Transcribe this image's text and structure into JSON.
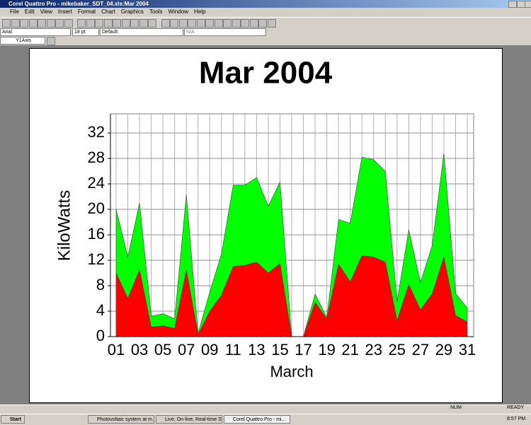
{
  "window": {
    "title": "Corel Quattro Pro - mikebaker_SDT_04.xls:Mar 2004",
    "menu": [
      "File",
      "Edit",
      "View",
      "Insert",
      "Format",
      "Chart",
      "Graphics",
      "Tools",
      "Window",
      "Help"
    ],
    "font": "Arial",
    "size": "18 pt",
    "style": "Default",
    "style2": "N/A",
    "object": "Y1Axis",
    "status": [
      "NUM",
      "READY"
    ],
    "taskbar": {
      "start": "Start",
      "tasks": [
        "Photovoltaic system at m...",
        "Live, On-line, Real-time S...",
        "Corel Quattro Pro - mi..."
      ],
      "clock": "8:57 PM"
    }
  },
  "chart_data": {
    "type": "stacked_area",
    "title": "Mar 2004",
    "x_label": "March",
    "y_label": "KiloWatts",
    "categories": [
      "01",
      null,
      "03",
      null,
      "05",
      null,
      "07",
      null,
      "09",
      null,
      "11",
      null,
      "13",
      null,
      "15",
      null,
      "17",
      null,
      "19",
      null,
      "21",
      null,
      "23",
      null,
      "25",
      null,
      "27",
      null,
      "29",
      null,
      "31"
    ],
    "series": [
      {
        "color": "#ff0000",
        "values": [
          10,
          6,
          10.5,
          1.5,
          1.7,
          1.3,
          10.5,
          0.3,
          4,
          6.5,
          11,
          11.2,
          11.7,
          10,
          11.5,
          0,
          0,
          5.4,
          2.8,
          11.4,
          8.6,
          12.7,
          12.5,
          11.7,
          2.5,
          8.2,
          4.2,
          6.7,
          12.5,
          3.3,
          2.3
        ]
      },
      {
        "color": "#00ff00",
        "values": [
          10,
          6.5,
          10.5,
          1.7,
          1.9,
          1.5,
          11.8,
          0.2,
          3,
          6.5,
          12.8,
          12.6,
          13.3,
          10.5,
          12.8,
          0,
          0,
          1.3,
          0.2,
          7,
          9.2,
          15.5,
          15.3,
          14.3,
          3,
          8.6,
          4.3,
          7.6,
          16.3,
          3.5,
          2.2
        ]
      }
    ],
    "ylim": [
      0,
      35
    ],
    "yticks": [
      0,
      4,
      8,
      12,
      16,
      20,
      24,
      28,
      32
    ],
    "grid": true
  }
}
